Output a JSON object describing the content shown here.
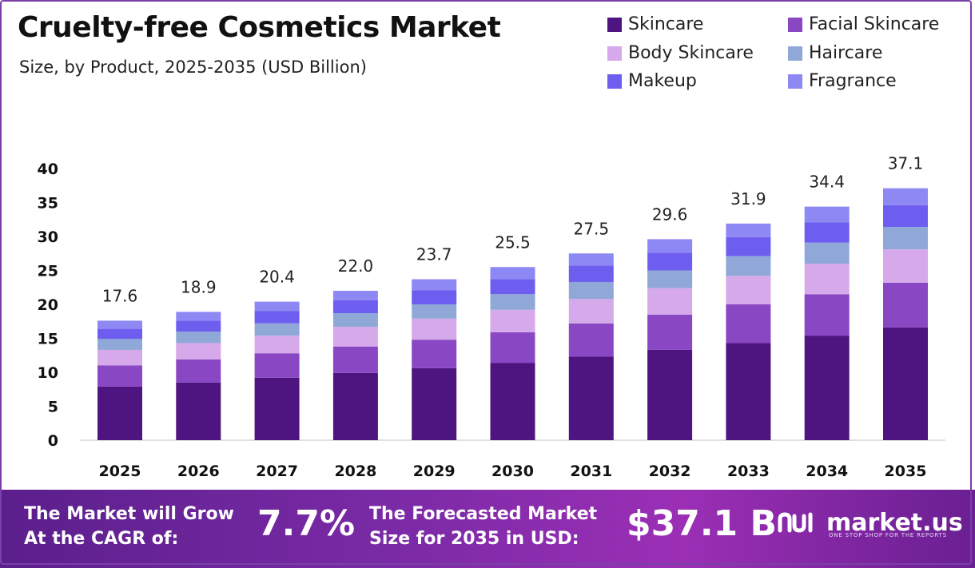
{
  "title": "Cruelty-free Cosmetics Market",
  "subtitle": "Size, by Product, 2025-2035 (USD Billion)",
  "legend": [
    {
      "label": "Skincare",
      "color": "#4e1580"
    },
    {
      "label": "Facial Skincare",
      "color": "#8a47c4"
    },
    {
      "label": "Body Skincare",
      "color": "#d6a9ea"
    },
    {
      "label": "Haircare",
      "color": "#90a8d8"
    },
    {
      "label": "Makeup",
      "color": "#6e5ef0"
    },
    {
      "label": "Fragrance",
      "color": "#8e88f4"
    }
  ],
  "chart_data": {
    "type": "bar",
    "stacked": true,
    "categories": [
      "2025",
      "2026",
      "2027",
      "2028",
      "2029",
      "2030",
      "2031",
      "2032",
      "2033",
      "2034",
      "2035"
    ],
    "totals_labels": [
      "17.6",
      "18.9",
      "20.4",
      "22.0",
      "23.7",
      "25.5",
      "27.5",
      "29.6",
      "31.9",
      "34.4",
      "37.1"
    ],
    "ylim": [
      0,
      40
    ],
    "yticks": [
      "0",
      "5",
      "10",
      "15",
      "20",
      "25",
      "30",
      "35",
      "40"
    ],
    "grid": false,
    "legend_position": "top-right",
    "series": [
      {
        "name": "Skincare",
        "color": "#4e1580",
        "values": [
          7.9,
          8.5,
          9.2,
          9.9,
          10.6,
          11.4,
          12.3,
          13.3,
          14.3,
          15.4,
          16.6
        ]
      },
      {
        "name": "Facial Skincare",
        "color": "#8a47c4",
        "values": [
          3.1,
          3.4,
          3.6,
          3.9,
          4.2,
          4.5,
          4.9,
          5.2,
          5.7,
          6.1,
          6.6
        ]
      },
      {
        "name": "Body Skincare",
        "color": "#d6a9ea",
        "values": [
          2.3,
          2.4,
          2.6,
          2.9,
          3.1,
          3.3,
          3.6,
          3.9,
          4.2,
          4.5,
          4.9
        ]
      },
      {
        "name": "Haircare",
        "color": "#90a8d8",
        "values": [
          1.6,
          1.7,
          1.8,
          2.0,
          2.1,
          2.3,
          2.5,
          2.6,
          2.9,
          3.1,
          3.3
        ]
      },
      {
        "name": "Makeup",
        "color": "#6e5ef0",
        "values": [
          1.5,
          1.6,
          1.8,
          1.9,
          2.1,
          2.2,
          2.4,
          2.6,
          2.8,
          3.0,
          3.2
        ]
      },
      {
        "name": "Fragrance",
        "color": "#8e88f4",
        "values": [
          1.2,
          1.3,
          1.4,
          1.4,
          1.6,
          1.8,
          1.8,
          2.0,
          2.0,
          2.3,
          2.5
        ]
      }
    ]
  },
  "footer": {
    "cagr_text_line1": "The Market will Grow",
    "cagr_text_line2": "At the CAGR of:",
    "cagr_value": "7.7%",
    "forecast_text_line1": "The Forecasted Market",
    "forecast_text_line2": "Size for 2035 in USD:",
    "forecast_value": "$37.1 B",
    "brand_name": "market.us",
    "brand_tagline": "ONE STOP SHOP FOR THE REPORTS",
    "brand_icon": "market-us-logo-icon"
  }
}
